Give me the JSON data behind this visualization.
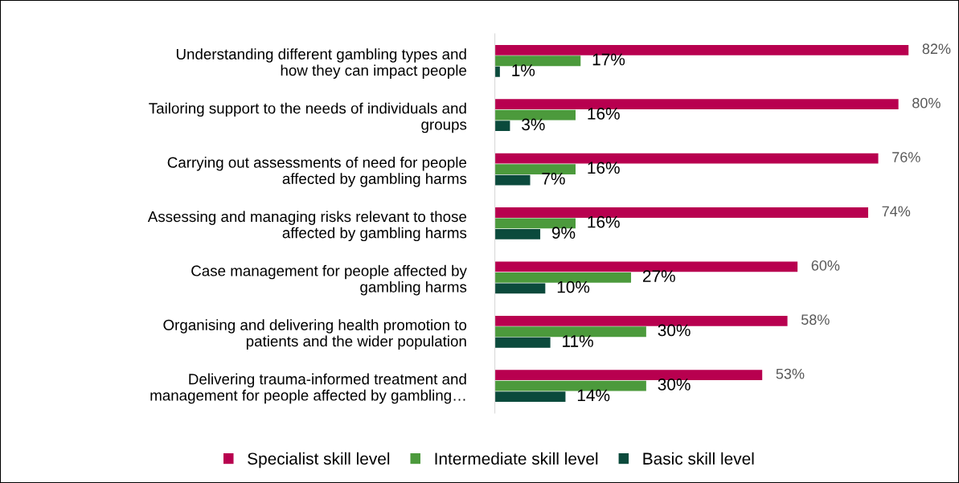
{
  "chart_data": {
    "type": "bar",
    "orientation": "horizontal",
    "categories": [
      "Understanding different gambling types and\nhow they can impact people",
      "Tailoring support to the needs of individuals and\ngroups",
      "Carrying out assessments of need for people\naffected by gambling harms",
      "Assessing and managing risks relevant to those\naffected by gambling harms",
      "Case management for people affected by\ngambling harms",
      "Organising and delivering health promotion to\npatients and the wider population",
      "Delivering trauma-informed treatment and\nmanagement for people affected by gambling…"
    ],
    "series": [
      {
        "name": "Specialist skill level",
        "color": "#b8004f",
        "values": [
          82,
          80,
          76,
          74,
          60,
          58,
          53
        ],
        "value_labels": [
          "82%",
          "80%",
          "76%",
          "74%",
          "60%",
          "58%",
          "53%"
        ]
      },
      {
        "name": "Intermediate skill level",
        "color": "#4c9a3c",
        "values": [
          17,
          16,
          16,
          16,
          27,
          30,
          30
        ],
        "value_labels": [
          "17%",
          "16%",
          "16%",
          "16%",
          "27%",
          "30%",
          "30%"
        ]
      },
      {
        "name": "Basic skill level",
        "color": "#0b4a3c",
        "values": [
          1,
          3,
          7,
          9,
          10,
          11,
          14
        ],
        "value_labels": [
          "1%",
          "3%",
          "7%",
          "9%",
          "10%",
          "11%",
          "14%"
        ]
      }
    ],
    "legend": "bottom",
    "grid": false
  }
}
